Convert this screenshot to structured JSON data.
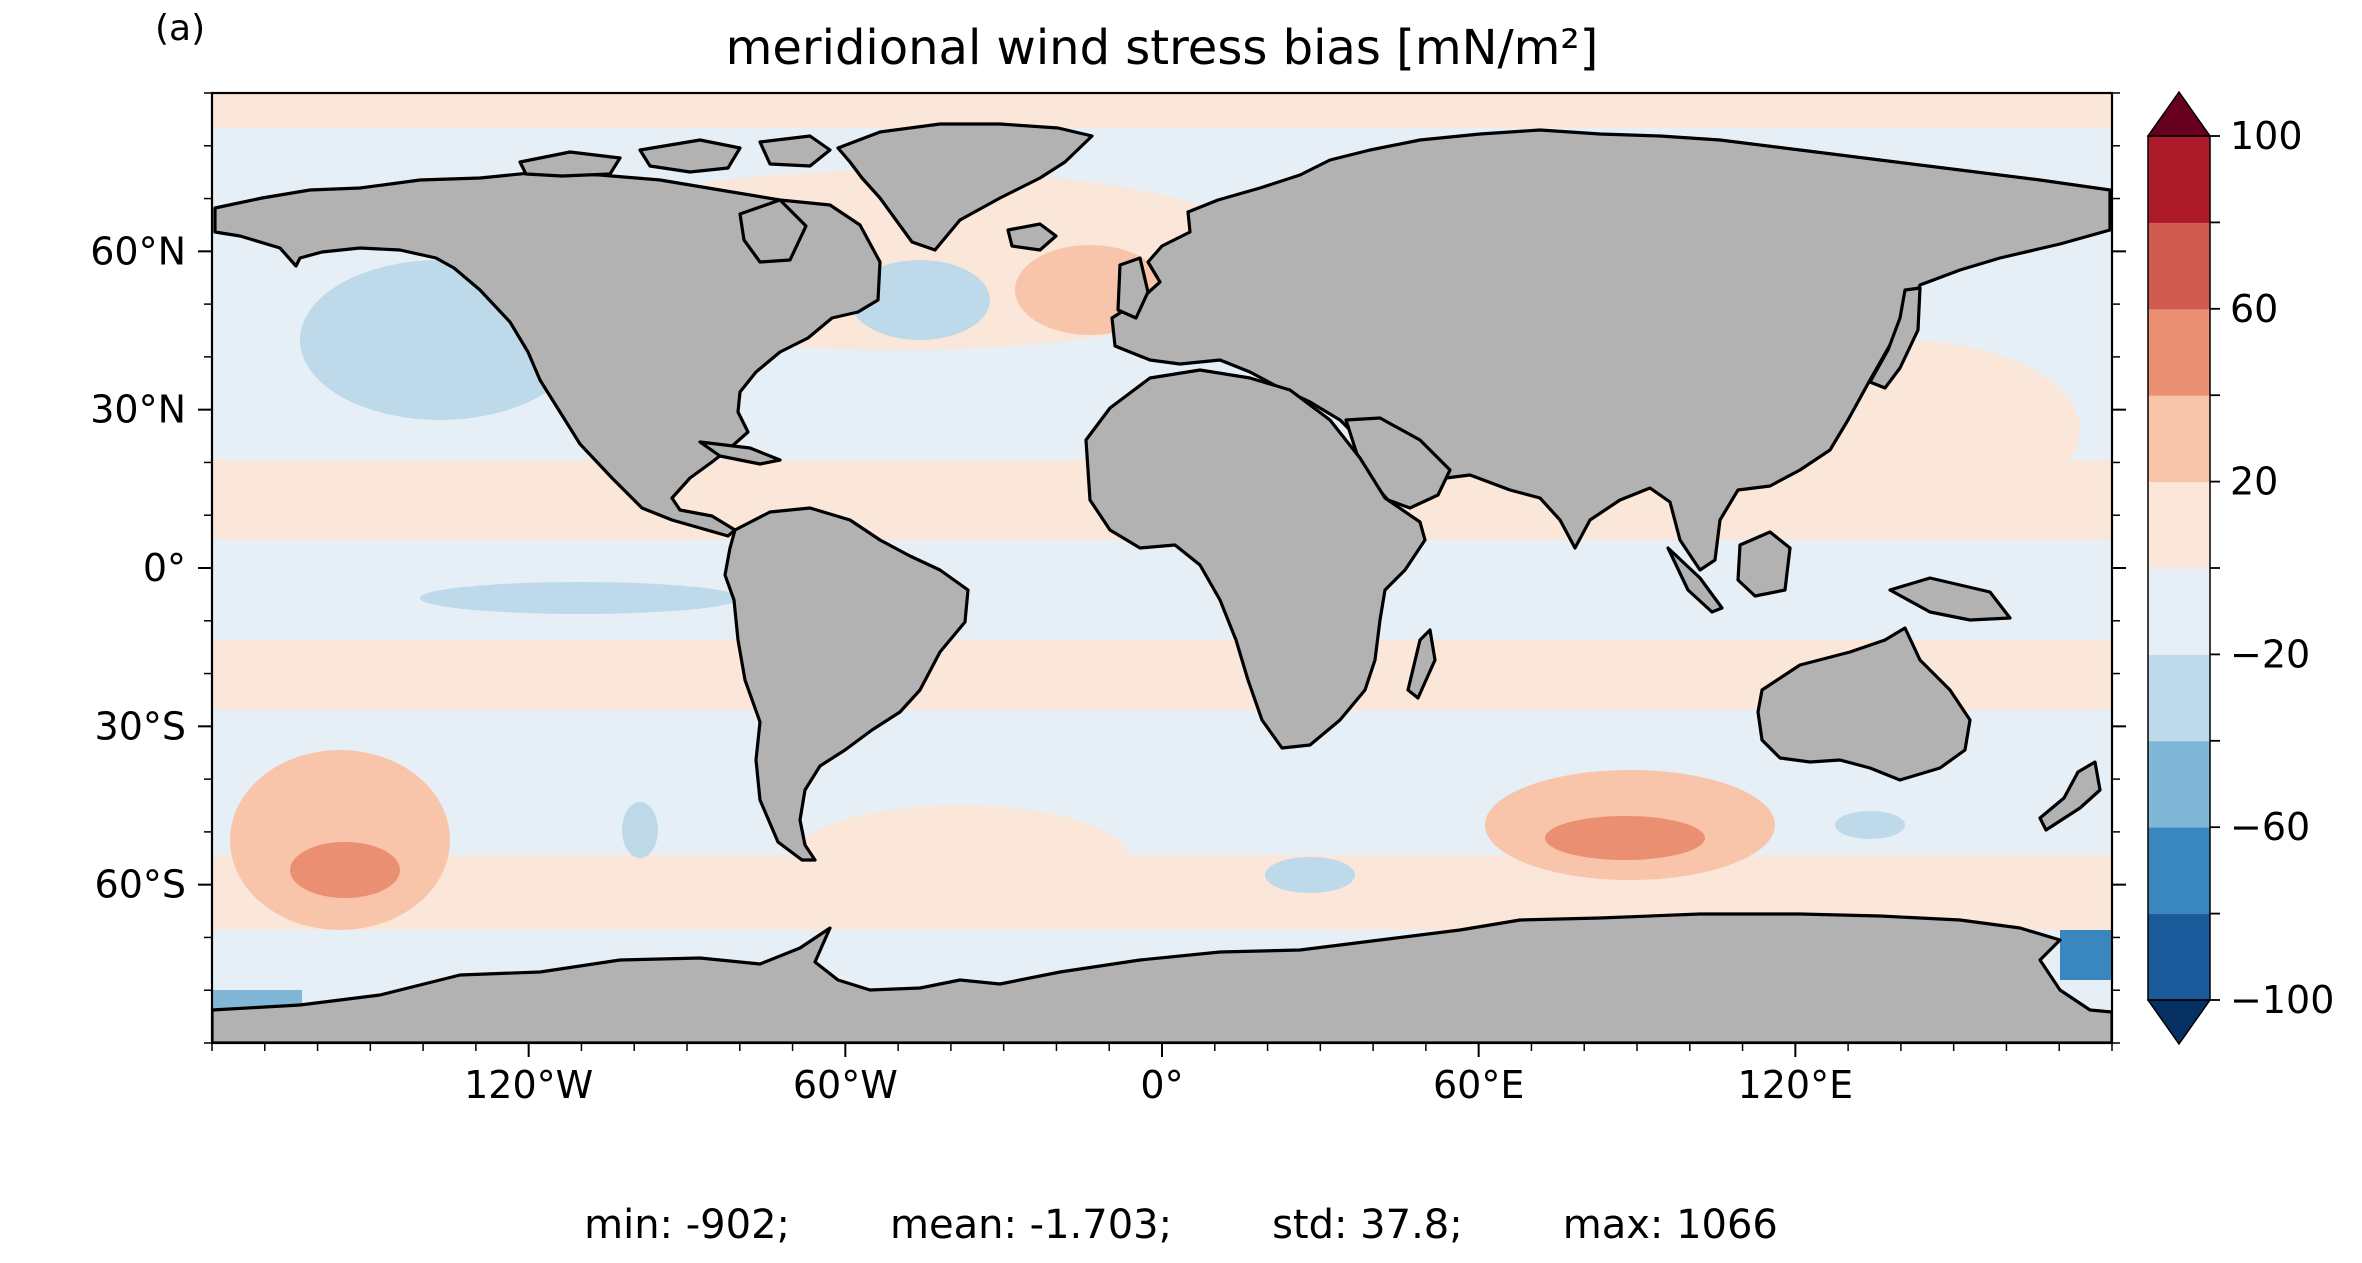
{
  "panel_label": "(a)",
  "title": "meridional wind stress bias [mN/m²]",
  "map": {
    "projection": "plate carree",
    "lon_range": [
      -180,
      180
    ],
    "lat_range": [
      -90,
      90
    ],
    "lat_ticks": [
      "60°N",
      "30°N",
      "0°",
      "30°S",
      "60°S"
    ],
    "lon_ticks": [
      "120°W",
      "60°W",
      "0°",
      "60°E",
      "120°E"
    ],
    "land_color": "#b2b2b2",
    "coastline_color": "#000000"
  },
  "colorbar": {
    "ticks": [
      "100",
      "60",
      "20",
      "−20",
      "−60",
      "−100"
    ],
    "levels": [
      -100,
      -80,
      -60,
      -40,
      -20,
      0,
      20,
      40,
      60,
      80,
      100
    ],
    "extend": "both",
    "colors": [
      "#053061",
      "#1b5a9b",
      "#3a87bf",
      "#80b6d6",
      "#bed9ea",
      "#e6eff6",
      "#fbe6da",
      "#f8c4aa",
      "#ea8f72",
      "#d05c4f",
      "#ad1b2b",
      "#67001f"
    ]
  },
  "stats": {
    "min": "min: -902;",
    "mean": "mean: -1.703;",
    "std": "std: 37.8;",
    "max": "max: 1066"
  }
}
